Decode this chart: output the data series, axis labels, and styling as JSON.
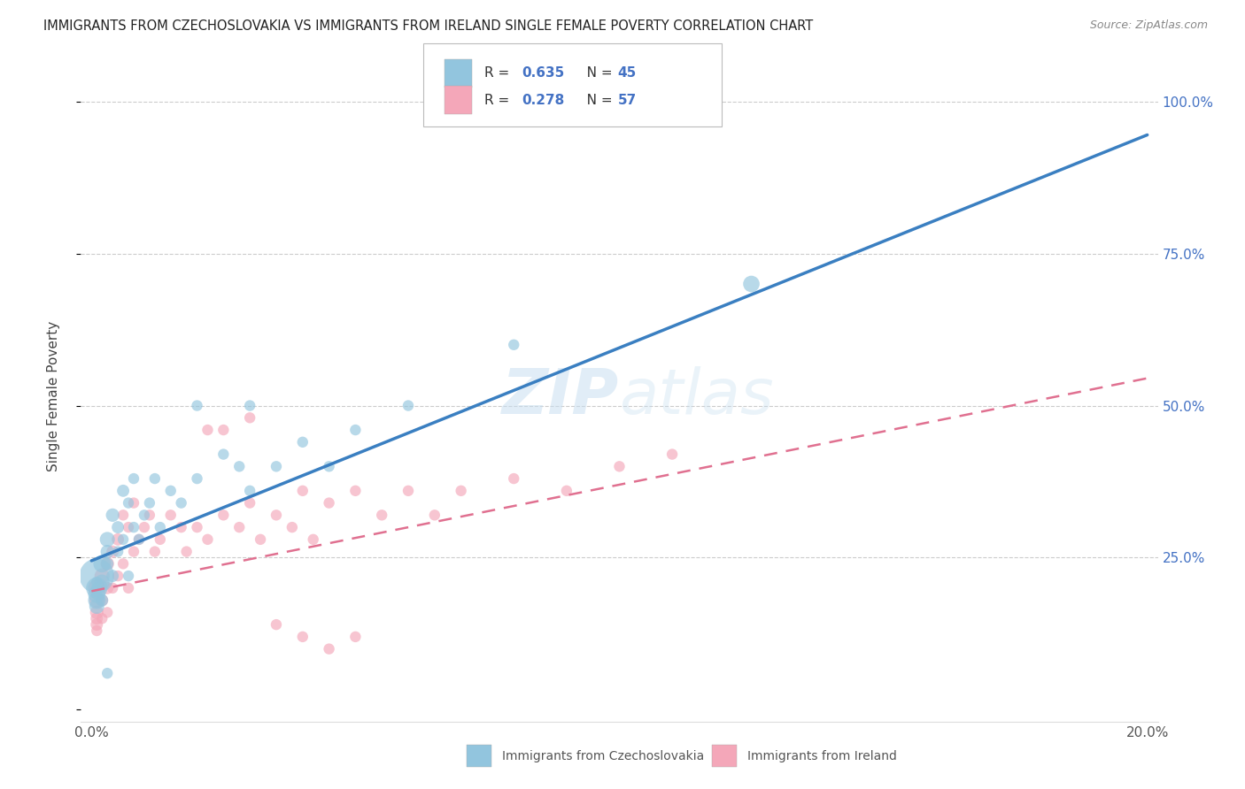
{
  "title": "IMMIGRANTS FROM CZECHOSLOVAKIA VS IMMIGRANTS FROM IRELAND SINGLE FEMALE POVERTY CORRELATION CHART",
  "source": "Source: ZipAtlas.com",
  "ylabel": "Single Female Poverty",
  "legend1_label": "Immigrants from Czechoslovakia",
  "legend2_label": "Immigrants from Ireland",
  "R1": 0.635,
  "N1": 45,
  "R2": 0.278,
  "N2": 57,
  "color1": "#92c5de",
  "color2": "#f4a7b9",
  "trendline1_color": "#3a7fc1",
  "trendline2_color": "#e07090",
  "watermark_color": "#c5ddf0",
  "watermark_alpha": 0.5,
  "xlim": [
    0.0,
    0.2
  ],
  "ylim": [
    0.0,
    1.05
  ],
  "trendline1_x0": 0.0,
  "trendline1_y0": 0.245,
  "trendline1_x1": 0.2,
  "trendline1_y1": 0.945,
  "trendline2_x0": 0.0,
  "trendline2_y0": 0.195,
  "trendline2_x1": 0.2,
  "trendline2_y1": 0.545,
  "scatter1_x": [
    0.001,
    0.001,
    0.001,
    0.001,
    0.001,
    0.002,
    0.002,
    0.002,
    0.003,
    0.003,
    0.003,
    0.004,
    0.004,
    0.005,
    0.005,
    0.006,
    0.006,
    0.007,
    0.007,
    0.008,
    0.008,
    0.009,
    0.01,
    0.011,
    0.012,
    0.013,
    0.015,
    0.017,
    0.02,
    0.025,
    0.028,
    0.03,
    0.035,
    0.04,
    0.045,
    0.05,
    0.06,
    0.08,
    0.03,
    0.125,
    0.02,
    0.001,
    0.001,
    0.001,
    0.003
  ],
  "scatter1_y": [
    0.22,
    0.2,
    0.19,
    0.18,
    0.17,
    0.24,
    0.21,
    0.18,
    0.28,
    0.26,
    0.24,
    0.32,
    0.22,
    0.3,
    0.26,
    0.36,
    0.28,
    0.34,
    0.22,
    0.38,
    0.3,
    0.28,
    0.32,
    0.34,
    0.38,
    0.3,
    0.36,
    0.34,
    0.38,
    0.42,
    0.4,
    0.36,
    0.4,
    0.44,
    0.4,
    0.46,
    0.5,
    0.6,
    0.5,
    0.7,
    0.5,
    0.21,
    0.2,
    0.19,
    0.06
  ],
  "scatter1_sizes": [
    800,
    300,
    200,
    200,
    150,
    200,
    150,
    100,
    150,
    120,
    100,
    120,
    100,
    100,
    80,
    100,
    80,
    80,
    80,
    80,
    80,
    80,
    80,
    80,
    80,
    80,
    80,
    80,
    80,
    80,
    80,
    80,
    80,
    80,
    80,
    80,
    80,
    80,
    80,
    180,
    80,
    80,
    80,
    80,
    80
  ],
  "scatter2_x": [
    0.001,
    0.001,
    0.001,
    0.001,
    0.001,
    0.001,
    0.002,
    0.002,
    0.002,
    0.003,
    0.003,
    0.003,
    0.004,
    0.004,
    0.005,
    0.005,
    0.006,
    0.006,
    0.007,
    0.007,
    0.008,
    0.008,
    0.009,
    0.01,
    0.011,
    0.012,
    0.013,
    0.015,
    0.017,
    0.018,
    0.02,
    0.022,
    0.025,
    0.028,
    0.03,
    0.032,
    0.035,
    0.038,
    0.04,
    0.042,
    0.045,
    0.05,
    0.055,
    0.06,
    0.065,
    0.07,
    0.08,
    0.09,
    0.1,
    0.11,
    0.025,
    0.03,
    0.035,
    0.04,
    0.045,
    0.05,
    0.022
  ],
  "scatter2_y": [
    0.2,
    0.18,
    0.16,
    0.15,
    0.14,
    0.13,
    0.22,
    0.18,
    0.15,
    0.24,
    0.2,
    0.16,
    0.26,
    0.2,
    0.28,
    0.22,
    0.32,
    0.24,
    0.3,
    0.2,
    0.34,
    0.26,
    0.28,
    0.3,
    0.32,
    0.26,
    0.28,
    0.32,
    0.3,
    0.26,
    0.3,
    0.28,
    0.32,
    0.3,
    0.34,
    0.28,
    0.32,
    0.3,
    0.36,
    0.28,
    0.34,
    0.36,
    0.32,
    0.36,
    0.32,
    0.36,
    0.38,
    0.36,
    0.4,
    0.42,
    0.46,
    0.48,
    0.14,
    0.12,
    0.1,
    0.12,
    0.46
  ],
  "scatter2_sizes": [
    200,
    150,
    120,
    100,
    100,
    80,
    150,
    100,
    80,
    120,
    100,
    80,
    100,
    80,
    100,
    80,
    80,
    80,
    80,
    80,
    80,
    80,
    80,
    80,
    80,
    80,
    80,
    80,
    80,
    80,
    80,
    80,
    80,
    80,
    80,
    80,
    80,
    80,
    80,
    80,
    80,
    80,
    80,
    80,
    80,
    80,
    80,
    80,
    80,
    80,
    80,
    80,
    80,
    80,
    80,
    80,
    80
  ]
}
